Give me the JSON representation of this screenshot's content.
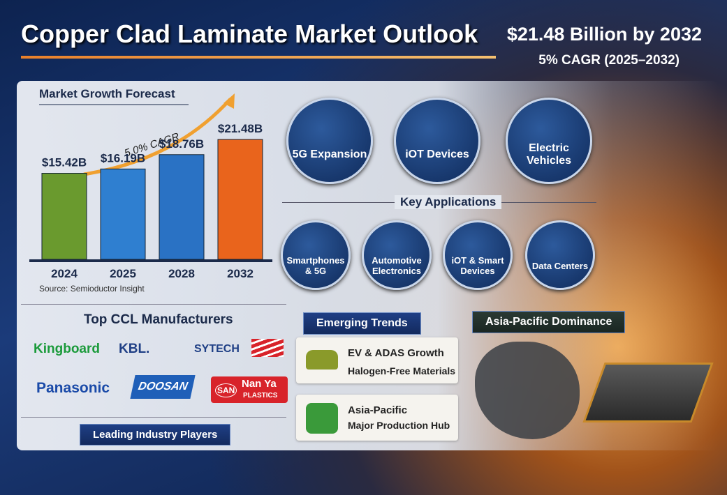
{
  "header": {
    "title": "Copper Clad Laminate Market Outlook",
    "headline": "$21.48 Billion by 2032",
    "cagr": "5% CAGR (2025–2032)"
  },
  "chart_data": {
    "type": "bar",
    "title": "Market Growth Forecast",
    "annotation": "5.0% CAGR",
    "source": "Source: Semioductor Insight",
    "categories": [
      "2024",
      "2025",
      "2028",
      "2032"
    ],
    "values": [
      15.42,
      16.19,
      18.76,
      21.48
    ],
    "value_labels": [
      "$15.42B",
      "$16.19B",
      "$18.76B",
      "$21.48B"
    ],
    "colors": [
      "#6a9a2e",
      "#2f7fd0",
      "#2a72c4",
      "#e9641c"
    ]
  },
  "applications": {
    "top": [
      "5G Expansion",
      "iOT Devices",
      "Electric Vehicles"
    ],
    "title": "Key Applications",
    "items": [
      "Smartphones & 5G",
      "Automotive Electronics",
      "iOT & Smart Devices",
      "Data Centers"
    ]
  },
  "manufacturers": {
    "title": "Top CCL Manufacturers",
    "logos": [
      "Kingboard",
      "KBL.",
      "SYTECH",
      "Panasonic",
      "DOOSAN",
      "SAN",
      "Nan Ya",
      "PLASTICS"
    ],
    "footer": "Leading Industry Players"
  },
  "trends": {
    "title": "Emerging Trends",
    "items": [
      [
        "EV & ADAS Growth",
        "Halogen-Free Materials"
      ],
      [
        "Asia-Pacific",
        "Major Production Hub"
      ]
    ]
  },
  "region": {
    "title": "Asia-Pacific Dominance"
  }
}
